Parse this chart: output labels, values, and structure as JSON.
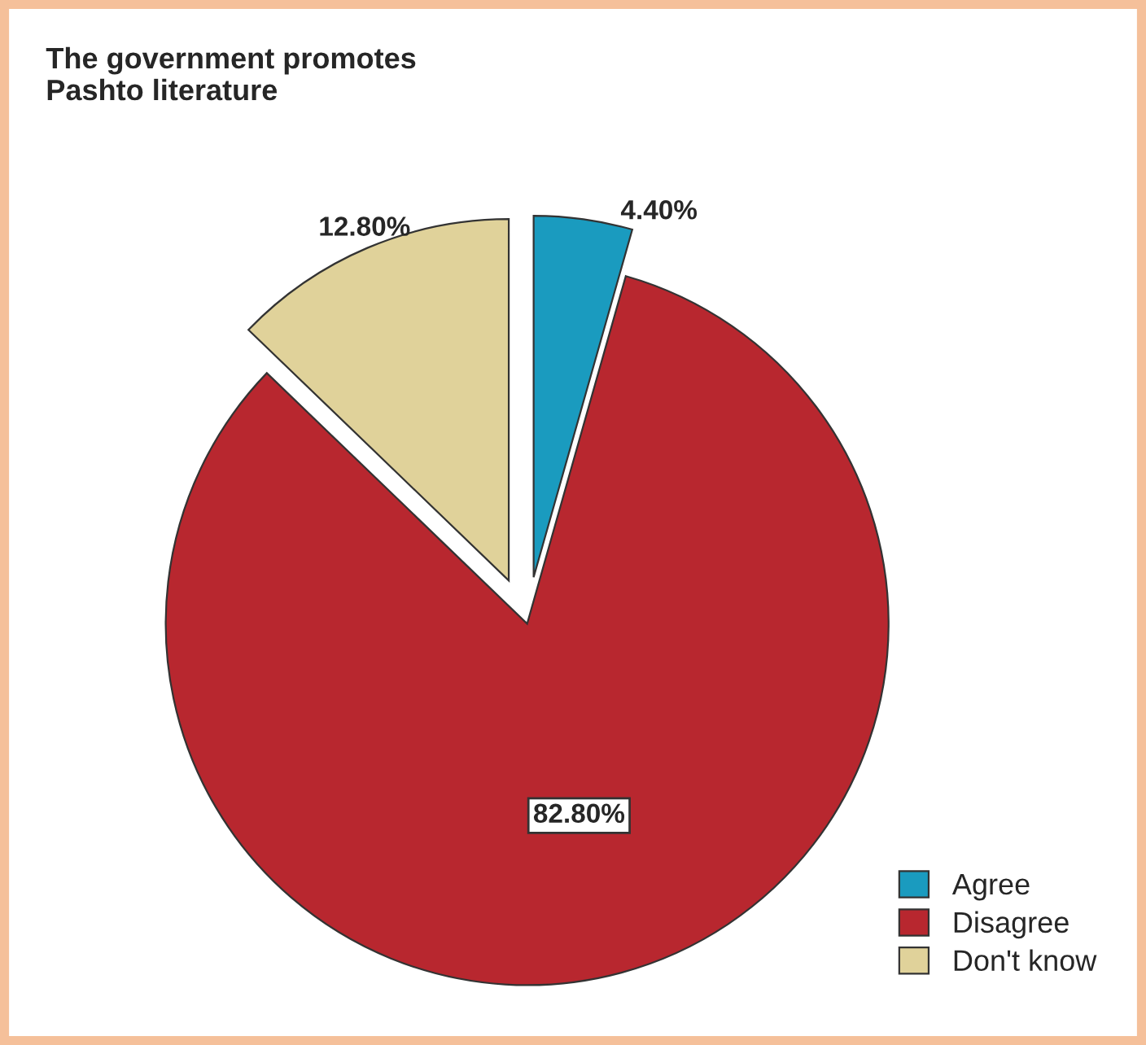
{
  "chart_data": {
    "type": "pie",
    "title": "The government promotes\nPashto literature",
    "categories": [
      "Agree",
      "Disagree",
      "Don't know"
    ],
    "values": [
      4.4,
      82.8,
      12.8
    ],
    "colors": [
      "#1a9bbf",
      "#b8272f",
      "#e0d29a"
    ],
    "value_labels": [
      "4.40%",
      "82.80%",
      "12.80%"
    ],
    "legend": "bottom right"
  }
}
